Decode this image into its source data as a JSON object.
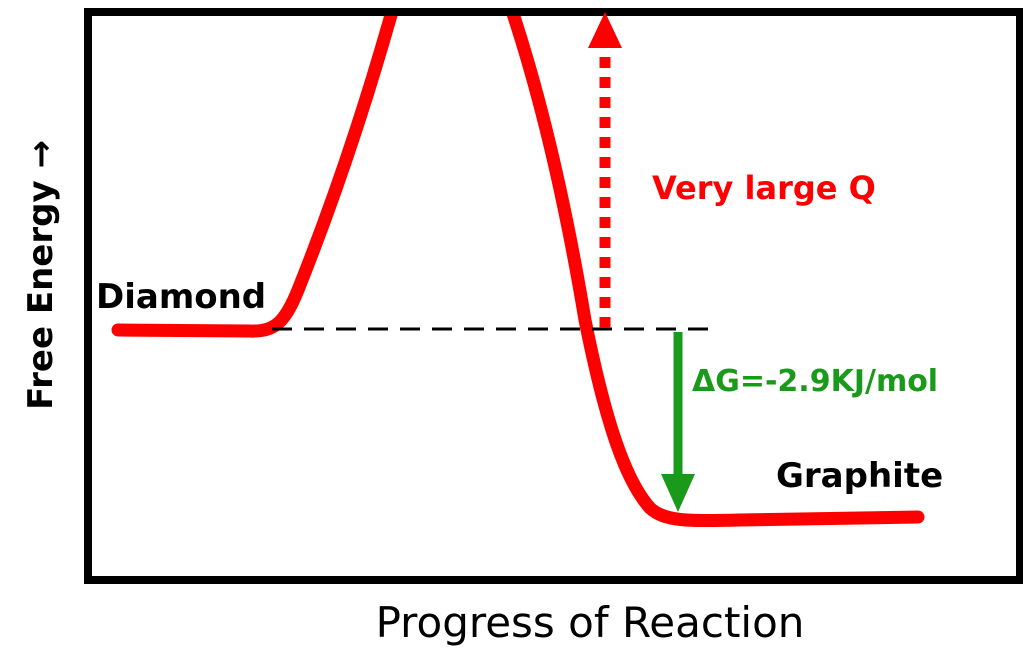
{
  "y_axis_label": "Free Energy  →",
  "x_axis_label": "Progress of Reaction",
  "labels": {
    "reactant": "Diamond",
    "product": "Graphite",
    "barrier": "Very large Q",
    "delta_g": "ΔG=-2.9KJ/mol"
  }
}
